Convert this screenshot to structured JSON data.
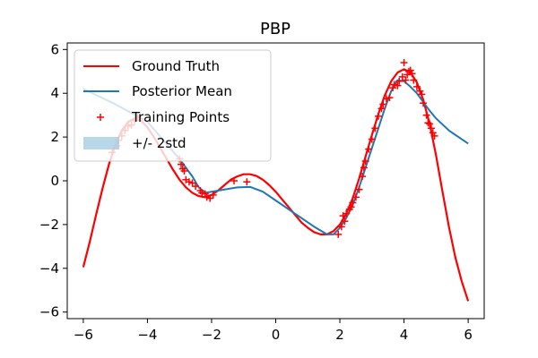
{
  "chart_data": {
    "type": "line",
    "title": "PBP",
    "xlabel": "",
    "ylabel": "",
    "xlim": [
      -6.5,
      6.5
    ],
    "ylim": [
      -6.3,
      6.3
    ],
    "xticks": [
      -6,
      -4,
      -2,
      0,
      2,
      4,
      6
    ],
    "yticks": [
      -6,
      -4,
      -2,
      0,
      2,
      4,
      6
    ],
    "xtick_labels": [
      "−6",
      "−4",
      "−2",
      "0",
      "2",
      "4",
      "6"
    ],
    "ytick_labels": [
      "−6",
      "−4",
      "−2",
      "0",
      "2",
      "4",
      "6"
    ],
    "grid": false,
    "legend_position": "top-left",
    "series": [
      {
        "name": "Ground Truth",
        "kind": "line",
        "color": "#ff0000",
        "x": [
          -6.0,
          -5.8,
          -5.6,
          -5.4,
          -5.2,
          -5.0,
          -4.8,
          -4.6,
          -4.4,
          -4.2,
          -4.0,
          -3.8,
          -3.6,
          -3.4,
          -3.2,
          -3.0,
          -2.8,
          -2.6,
          -2.4,
          -2.2,
          -2.0,
          -1.8,
          -1.6,
          -1.4,
          -1.2,
          -1.0,
          -0.8,
          -0.6,
          -0.4,
          -0.2,
          0.0,
          0.2,
          0.4,
          0.6,
          0.8,
          1.0,
          1.2,
          1.4,
          1.6,
          1.8,
          2.0,
          2.2,
          2.4,
          2.6,
          2.8,
          3.0,
          3.2,
          3.4,
          3.6,
          3.8,
          4.0,
          4.2,
          4.4,
          4.6,
          4.8,
          5.0,
          5.2,
          5.4,
          5.6,
          5.8,
          6.0
        ],
        "y": [
          -3.95,
          -2.8,
          -1.55,
          -0.35,
          0.75,
          1.65,
          2.3,
          2.7,
          2.85,
          2.75,
          2.45,
          2.0,
          1.5,
          1.0,
          0.5,
          0.05,
          -0.3,
          -0.55,
          -0.7,
          -0.75,
          -0.65,
          -0.45,
          -0.2,
          0.05,
          0.2,
          0.3,
          0.3,
          0.22,
          0.05,
          -0.2,
          -0.5,
          -0.85,
          -1.2,
          -1.55,
          -1.9,
          -2.15,
          -2.35,
          -2.45,
          -2.45,
          -2.3,
          -2.0,
          -1.5,
          -0.8,
          0.1,
          1.1,
          2.1,
          3.05,
          3.9,
          4.55,
          4.95,
          5.1,
          4.95,
          4.5,
          3.7,
          2.6,
          1.15,
          -0.5,
          -2.1,
          -3.5,
          -4.6,
          -5.5
        ]
      },
      {
        "name": "Posterior Mean",
        "kind": "line",
        "color": "#1f77b4",
        "x": [
          -6.0,
          -5.0,
          -4.0,
          -3.0,
          -2.6,
          -2.4,
          -2.2,
          -2.0,
          -1.6,
          -1.2,
          -0.8,
          -0.4,
          0.0,
          0.4,
          0.8,
          1.2,
          1.6,
          1.8,
          2.0,
          2.2,
          2.4,
          2.6,
          2.8,
          3.0,
          3.2,
          3.4,
          3.6,
          3.8,
          4.0,
          4.2,
          4.4,
          4.6,
          4.8,
          5.0,
          5.4,
          6.0
        ],
        "y": [
          4.2,
          3.5,
          2.7,
          1.0,
          0.2,
          -0.3,
          -0.55,
          -0.5,
          -0.4,
          -0.3,
          -0.28,
          -0.5,
          -0.9,
          -1.3,
          -1.7,
          -2.1,
          -2.45,
          -2.45,
          -2.15,
          -1.7,
          -1.1,
          -0.3,
          0.6,
          1.5,
          2.4,
          3.3,
          4.1,
          4.6,
          4.55,
          4.3,
          4.0,
          3.6,
          3.2,
          2.85,
          2.3,
          1.7
        ]
      },
      {
        "name": "Training Points",
        "kind": "scatter",
        "marker": "+",
        "color": "#ff0000",
        "points": [
          [
            -5.1,
            1.3
          ],
          [
            -4.95,
            1.6
          ],
          [
            -4.9,
            1.85
          ],
          [
            -4.8,
            2.05
          ],
          [
            -4.7,
            2.3
          ],
          [
            -4.6,
            2.5
          ],
          [
            -4.5,
            2.55
          ],
          [
            -4.4,
            2.75
          ],
          [
            -4.3,
            2.9
          ],
          [
            -3.0,
            1.0
          ],
          [
            -2.95,
            0.75
          ],
          [
            -2.9,
            0.55
          ],
          [
            -2.85,
            0.45
          ],
          [
            -2.8,
            0.05
          ],
          [
            -2.7,
            -0.05
          ],
          [
            -2.6,
            -0.1
          ],
          [
            -2.5,
            -0.25
          ],
          [
            -2.35,
            -0.45
          ],
          [
            -2.3,
            -0.55
          ],
          [
            -2.2,
            -0.6
          ],
          [
            -2.15,
            -0.75
          ],
          [
            -2.05,
            -0.8
          ],
          [
            -1.95,
            -0.65
          ],
          [
            -1.3,
            0.0
          ],
          [
            -0.9,
            -0.05
          ],
          [
            1.95,
            -2.45
          ],
          [
            2.05,
            -2.1
          ],
          [
            2.1,
            -1.6
          ],
          [
            2.15,
            -1.85
          ],
          [
            2.2,
            -1.5
          ],
          [
            2.3,
            -1.3
          ],
          [
            2.35,
            -1.2
          ],
          [
            2.4,
            -1.0
          ],
          [
            2.5,
            -0.75
          ],
          [
            2.6,
            -0.4
          ],
          [
            2.7,
            0.2
          ],
          [
            2.75,
            0.6
          ],
          [
            2.8,
            0.9
          ],
          [
            2.9,
            1.45
          ],
          [
            3.0,
            1.9
          ],
          [
            3.1,
            2.4
          ],
          [
            3.2,
            2.95
          ],
          [
            3.3,
            3.3
          ],
          [
            3.35,
            3.5
          ],
          [
            3.45,
            3.75
          ],
          [
            3.55,
            3.8
          ],
          [
            3.65,
            4.25
          ],
          [
            3.7,
            4.4
          ],
          [
            3.8,
            4.35
          ],
          [
            3.85,
            4.55
          ],
          [
            3.95,
            4.75
          ],
          [
            4.0,
            5.4
          ],
          [
            4.05,
            4.6
          ],
          [
            4.1,
            4.85
          ],
          [
            4.15,
            5.0
          ],
          [
            4.2,
            5.05
          ],
          [
            4.25,
            4.9
          ],
          [
            4.3,
            4.6
          ],
          [
            4.4,
            4.3
          ],
          [
            4.5,
            4.1
          ],
          [
            4.55,
            3.95
          ],
          [
            4.6,
            3.55
          ],
          [
            4.7,
            3.0
          ],
          [
            4.75,
            2.65
          ],
          [
            4.8,
            2.6
          ],
          [
            4.85,
            2.4
          ],
          [
            4.9,
            2.2
          ],
          [
            4.95,
            2.05
          ]
        ]
      },
      {
        "name": "+/- 2std",
        "kind": "band",
        "color": "#a6cee3"
      }
    ]
  }
}
